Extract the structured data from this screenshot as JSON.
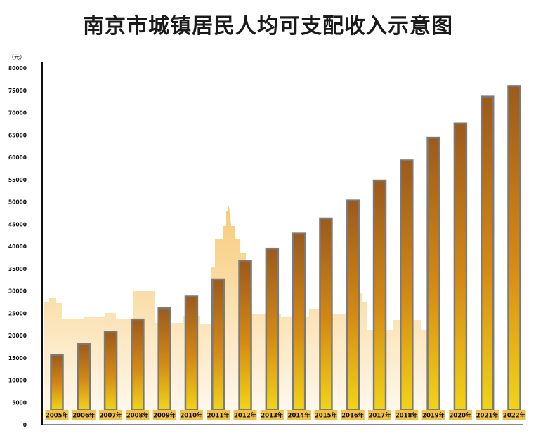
{
  "chart_data": {
    "type": "bar",
    "title": "南京市城镇居民人均可支配收入示意图",
    "unit_label": "（元）",
    "ylim": [
      0,
      80000
    ],
    "y_ticks": [
      0,
      5000,
      10000,
      15000,
      20000,
      25000,
      30000,
      35000,
      40000,
      45000,
      50000,
      55000,
      60000,
      65000,
      70000,
      75000,
      80000
    ],
    "grid": false,
    "categories": [
      "2005年",
      "2006年",
      "2007年",
      "2008年",
      "2009年",
      "2010年",
      "2011年",
      "2012年",
      "2013年",
      "2014年",
      "2015年",
      "2016年",
      "2017年",
      "2018年",
      "2019年",
      "2020年",
      "2021年",
      "2022年"
    ],
    "values": [
      15600,
      18100,
      20900,
      23600,
      26100,
      28900,
      32600,
      36800,
      39500,
      42900,
      46300,
      50300,
      54800,
      59300,
      64400,
      67600,
      73600,
      76000
    ]
  },
  "colors": {
    "bar_top": "#9c5a1c",
    "bar_mid": "#d58a14",
    "bar_bottom": "#f2d418",
    "bar_border": "#7a7a7a",
    "label_bg": "#f0c24a",
    "skyline": "#f6c15e",
    "axis": "#111111"
  }
}
